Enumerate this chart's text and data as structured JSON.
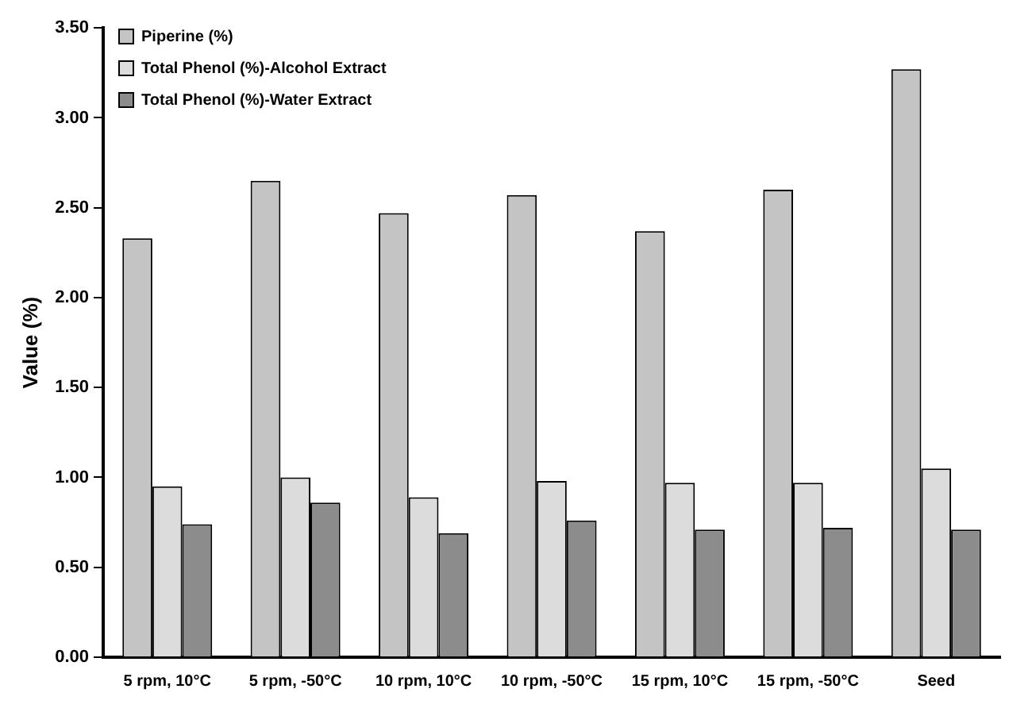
{
  "chart_data": {
    "type": "bar",
    "ylabel": "Value (%)",
    "categories": [
      "5 rpm, 10°C",
      "5 rpm, -50°C",
      "10 rpm, 10°C",
      "10 rpm, -50°C",
      "15 rpm, 10°C",
      "15 rpm, -50°C",
      "Seed"
    ],
    "series": [
      {
        "name": "Piperine (%)",
        "color": "#c4c4c4",
        "values": [
          2.33,
          2.65,
          2.47,
          2.57,
          2.37,
          2.6,
          3.27
        ]
      },
      {
        "name": "Total Phenol (%)-Alcohol Extract",
        "color": "#dcdcdc",
        "values": [
          0.95,
          1.0,
          0.89,
          0.98,
          0.97,
          0.97,
          1.05
        ]
      },
      {
        "name": "Total Phenol (%)-Water Extract",
        "color": "#8c8c8c",
        "values": [
          0.74,
          0.86,
          0.69,
          0.76,
          0.71,
          0.72,
          0.71
        ]
      }
    ],
    "ylim": [
      0,
      3.5
    ],
    "yticks": [
      {
        "value": 0,
        "label": "0.00"
      },
      {
        "value": 0.5,
        "label": "0.50"
      },
      {
        "value": 1,
        "label": "1.00"
      },
      {
        "value": 1.5,
        "label": "1.50"
      },
      {
        "value": 2,
        "label": "2.00"
      },
      {
        "value": 2.5,
        "label": "2.50"
      },
      {
        "value": 3,
        "label": "3.00"
      },
      {
        "value": 3.5,
        "label": "3.50"
      }
    ],
    "grid": false,
    "legend": "top left"
  }
}
